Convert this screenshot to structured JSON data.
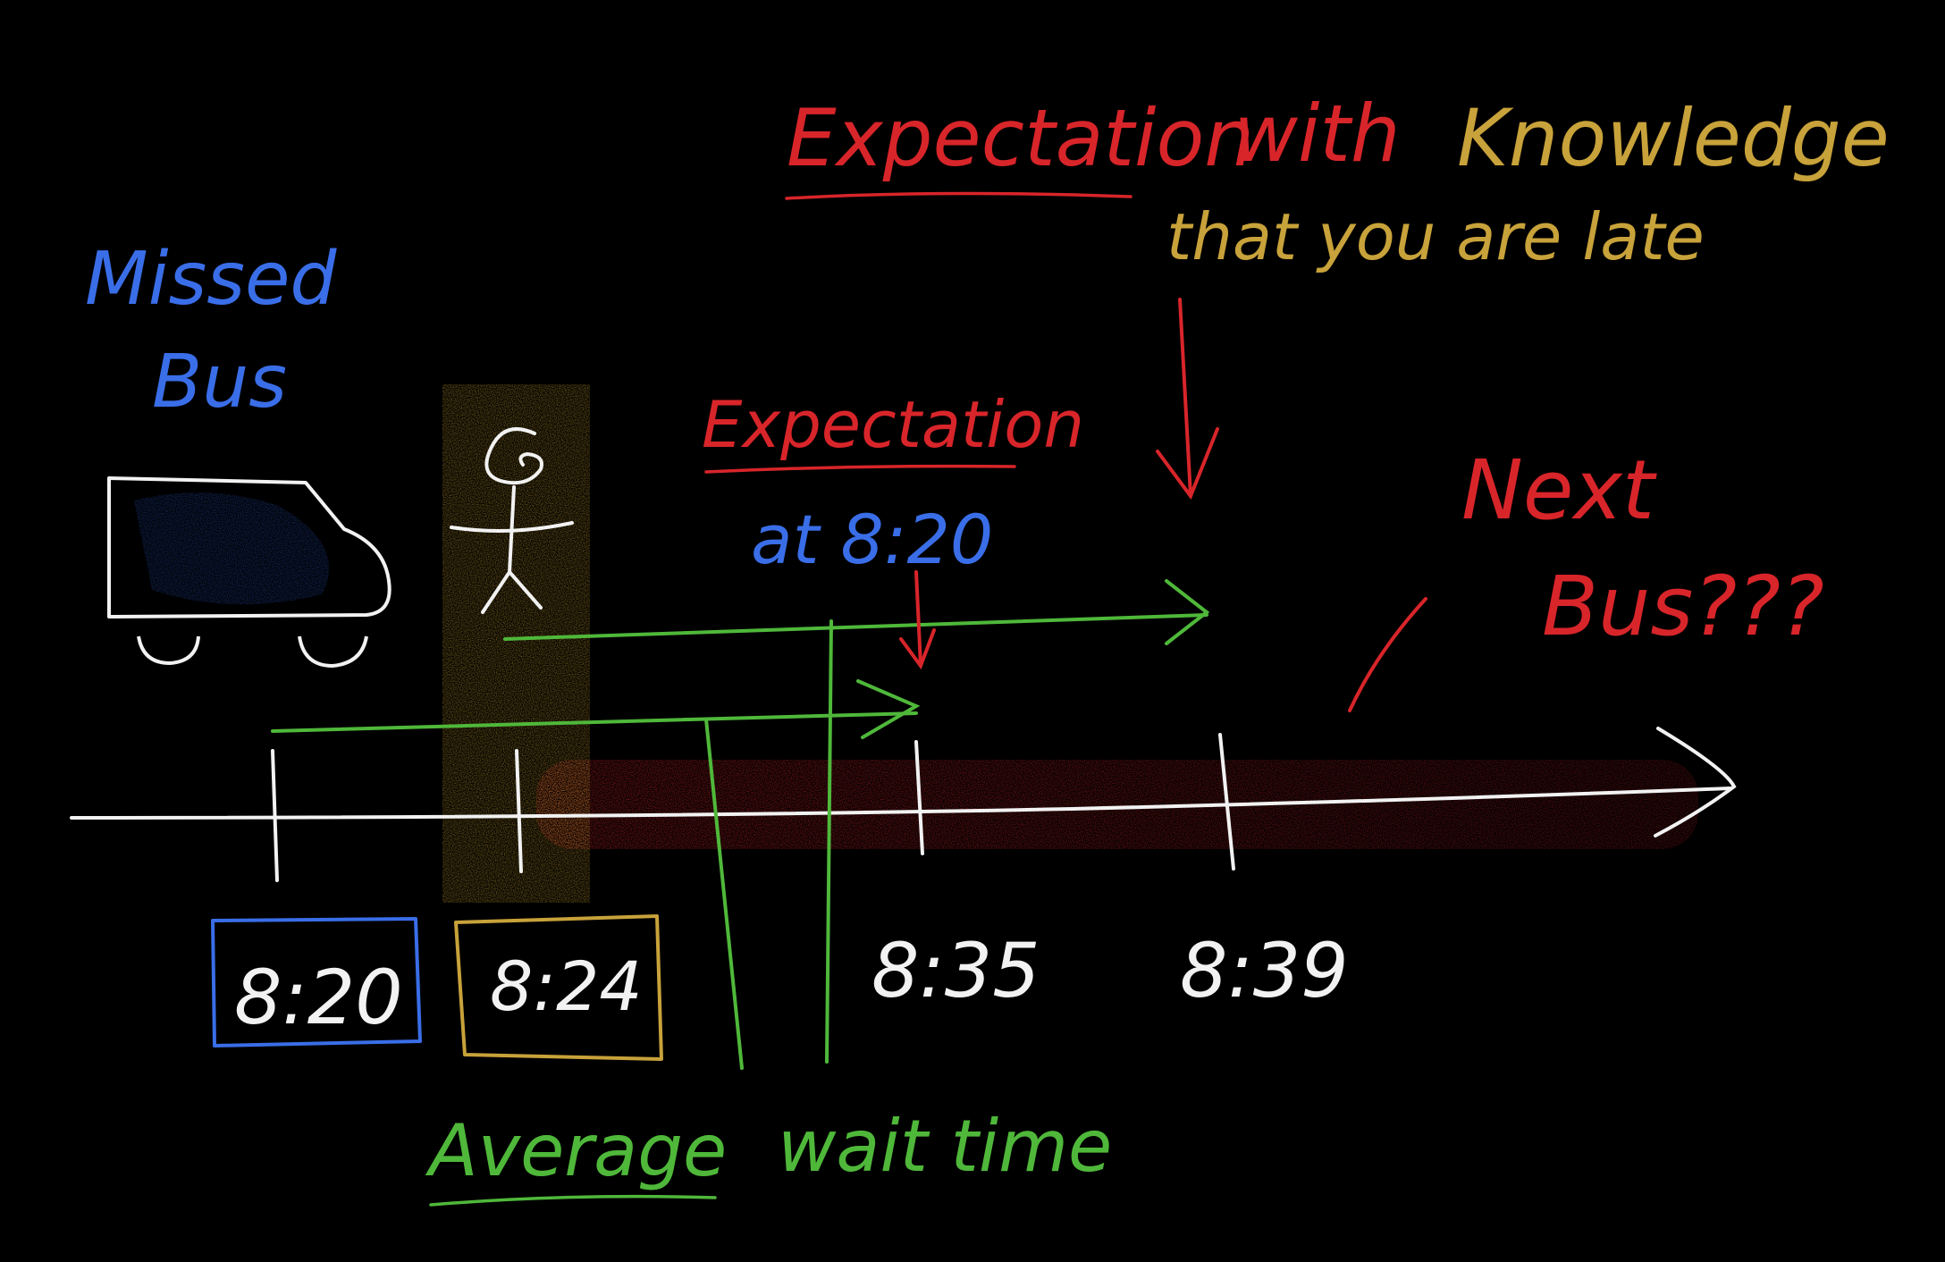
{
  "labels": {
    "missed_line1": "Missed",
    "missed_line2": "Bus",
    "expectation_knowledge_a": "Expectation",
    "expectation_knowledge_b": "with",
    "expectation_knowledge_c": "Knowledge",
    "that_you_are_late": "that you are late",
    "expectation": "Expectation",
    "at_time": "at 8:20",
    "next_line1": "Next",
    "next_line2": "Bus???",
    "average_a": "Average",
    "average_b": "wait time"
  },
  "timeline": {
    "ticks": [
      "8:20",
      "8:24",
      "8:35",
      "8:39"
    ]
  },
  "colors": {
    "blue": "#3a6ee8",
    "red": "#d8252a",
    "gold": "#c8a23a",
    "green": "#4fb83a",
    "white": "#f2f2f2",
    "background": "#000000"
  },
  "icons": [
    "bus-icon",
    "stick-figure-icon"
  ]
}
